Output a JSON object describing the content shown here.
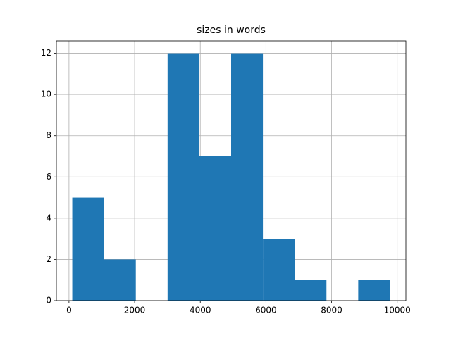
{
  "chart_data": {
    "type": "histogram",
    "title": "sizes in words",
    "bins": [
      100,
      1068,
      2036,
      3004,
      3972,
      4940,
      5908,
      6876,
      7844,
      8812,
      9780
    ],
    "counts": [
      5,
      2,
      0,
      12,
      7,
      12,
      3,
      1,
      0,
      1
    ],
    "color": "#1f77b4",
    "xlim": [
      -384,
      10264
    ],
    "xticks": [
      0,
      2000,
      4000,
      6000,
      8000,
      10000
    ],
    "ylim": [
      0,
      12.6
    ],
    "yticks": [
      0,
      2,
      4,
      6,
      8,
      10,
      12
    ],
    "grid": true
  }
}
